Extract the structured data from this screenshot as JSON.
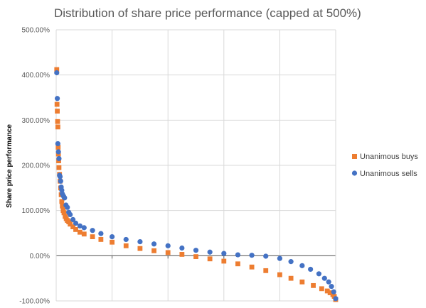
{
  "chart_data": {
    "type": "scatter",
    "title": "Distribution of share price performance (capped at 500%)",
    "xlabel": "",
    "ylabel": "Share price performance",
    "ylim": [
      -100,
      500
    ],
    "ytick_values": [
      -100,
      0,
      100,
      200,
      300,
      400,
      500
    ],
    "ytick_labels": [
      "-100.00%",
      "0.00%",
      "100.00%",
      "200.00%",
      "300.00%",
      "400.00%",
      "500.00%"
    ],
    "xlim": [
      0,
      1
    ],
    "x_gridlines": [
      0.2,
      0.4,
      0.6,
      0.8
    ],
    "grid": true,
    "legend_position": "right",
    "series": [
      {
        "name": "Unanimous buys",
        "color": "#ED7D31",
        "marker": "square",
        "x": [
          0.002,
          0.003,
          0.004,
          0.005,
          0.006,
          0.007,
          0.008,
          0.009,
          0.01,
          0.012,
          0.014,
          0.016,
          0.018,
          0.02,
          0.022,
          0.025,
          0.028,
          0.032,
          0.036,
          0.04,
          0.045,
          0.05,
          0.06,
          0.07,
          0.085,
          0.1,
          0.13,
          0.16,
          0.2,
          0.25,
          0.3,
          0.35,
          0.4,
          0.45,
          0.5,
          0.55,
          0.6,
          0.65,
          0.7,
          0.75,
          0.8,
          0.84,
          0.88,
          0.92,
          0.95,
          0.97,
          0.98,
          0.99,
          0.995,
          1.0
        ],
        "values": [
          412,
          335,
          320,
          297,
          285,
          240,
          225,
          210,
          195,
          180,
          165,
          150,
          135,
          120,
          110,
          100,
          95,
          87,
          82,
          78,
          75,
          70,
          64,
          58,
          52,
          48,
          42,
          36,
          30,
          22,
          16,
          11,
          7,
          3,
          -2,
          -7,
          -12,
          -18,
          -25,
          -33,
          -42,
          -50,
          -58,
          -66,
          -73,
          -78,
          -82,
          -86,
          -90,
          -97
        ]
      },
      {
        "name": "Unanimous sells",
        "color": "#4472C4",
        "marker": "circle",
        "x": [
          0.002,
          0.004,
          0.006,
          0.008,
          0.01,
          0.012,
          0.014,
          0.016,
          0.018,
          0.02,
          0.022,
          0.025,
          0.028,
          0.03,
          0.035,
          0.04,
          0.045,
          0.05,
          0.06,
          0.07,
          0.085,
          0.1,
          0.13,
          0.16,
          0.2,
          0.25,
          0.3,
          0.35,
          0.4,
          0.45,
          0.5,
          0.55,
          0.6,
          0.65,
          0.7,
          0.75,
          0.8,
          0.84,
          0.88,
          0.91,
          0.94,
          0.96,
          0.975,
          0.985,
          0.993,
          1.0
        ],
        "values": [
          405,
          348,
          248,
          230,
          215,
          178,
          175,
          165,
          152,
          145,
          137,
          133,
          130,
          128,
          112,
          107,
          96,
          91,
          80,
          72,
          66,
          62,
          56,
          49,
          42,
          36,
          31,
          26,
          22,
          17,
          12,
          8,
          5,
          2,
          1,
          -1,
          -6,
          -13,
          -22,
          -30,
          -40,
          -50,
          -58,
          -68,
          -80,
          -95
        ]
      }
    ]
  }
}
